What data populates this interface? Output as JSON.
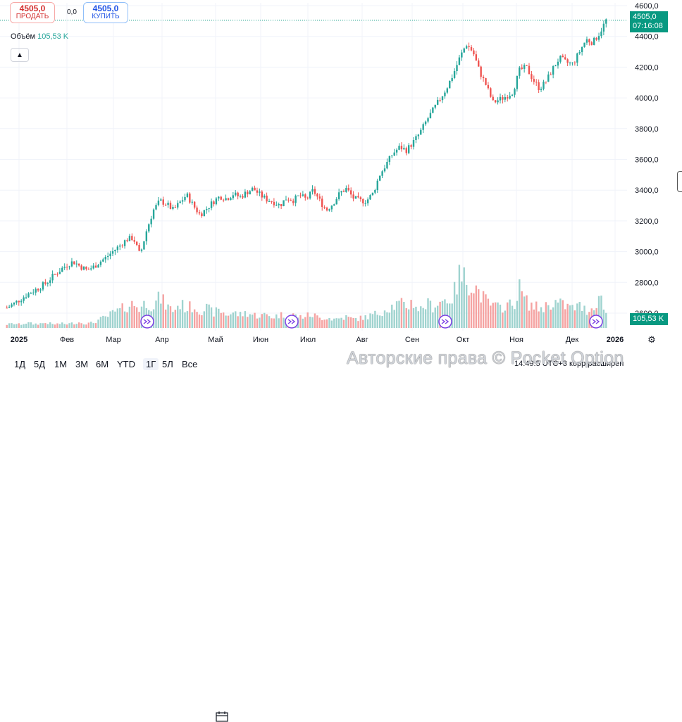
{
  "trade": {
    "sell_price": "4505,0",
    "sell_label": "ПРОДАТЬ",
    "buy_price": "4505,0",
    "buy_label": "КУПИТЬ",
    "spread": "0,0"
  },
  "volume_legend": {
    "label": "Объём",
    "value": "105,53 K"
  },
  "price_axis": {
    "last_price": "4505,0",
    "countdown": "07:16:08",
    "volume_label": "105,53 K"
  },
  "colors": {
    "up": "#26a69a",
    "down": "#ef5350",
    "vol_up": "#9fd3cf",
    "vol_down": "#f5a3a2",
    "label_bg": "#089981"
  },
  "timeframes": [
    "1Д",
    "5Д",
    "1М",
    "3М",
    "6М",
    "YTD",
    "1Г",
    "5Л",
    "Все"
  ],
  "active_timeframe": "1Г",
  "bottom": {
    "time_text": "14:49:5",
    "utc_text": "UTC+3",
    "adj_text": "корр",
    "session_text": "расширен"
  },
  "watermark": "Авторские права © Pocket Option",
  "chart_data": {
    "type": "candlestick",
    "ylim": [
      2500,
      4620
    ],
    "yticks": [
      2600,
      2800,
      3000,
      3200,
      3400,
      3600,
      3800,
      4000,
      4200,
      4400,
      4600
    ],
    "ytick_labels": [
      "2600,0",
      "2800,0",
      "3000,0",
      "3200,0",
      "3400,0",
      "3600,0",
      "3800,0",
      "4000,0",
      "4200,0",
      "4400,0",
      "4600,0"
    ],
    "x_labels": [
      "2025",
      "Фев",
      "Мар",
      "Апр",
      "Май",
      "Июн",
      "Июл",
      "Авг",
      "Сен",
      "Окт",
      "Ноя",
      "Дек",
      "2026"
    ],
    "close_series": [
      2635,
      2660,
      2690,
      2720,
      2745,
      2770,
      2800,
      2845,
      2880,
      2915,
      2935,
      2905,
      2880,
      2900,
      2935,
      2965,
      3005,
      3040,
      3080,
      3090,
      2975,
      3140,
      3270,
      3330,
      3310,
      3270,
      3320,
      3370,
      3300,
      3240,
      3280,
      3325,
      3360,
      3345,
      3375,
      3355,
      3385,
      3410,
      3370,
      3340,
      3325,
      3300,
      3350,
      3335,
      3365,
      3340,
      3400,
      3330,
      3270,
      3315,
      3380,
      3410,
      3350,
      3330,
      3330,
      3380,
      3500,
      3570,
      3640,
      3680,
      3660,
      3710,
      3770,
      3850,
      3920,
      3990,
      4060,
      4150,
      4260,
      4350,
      4300,
      4170,
      4080,
      3970,
      3990,
      4010,
      4040,
      4180,
      4200,
      4120,
      4060,
      4110,
      4190,
      4260,
      4230,
      4220,
      4300,
      4380,
      4360,
      4420,
      4505
    ],
    "volume_relative": [
      0.08,
      0.1,
      0.08,
      0.12,
      0.09,
      0.1,
      0.12,
      0.08,
      0.1,
      0.09,
      0.11,
      0.13,
      0.1,
      0.12,
      0.2,
      0.25,
      0.35,
      0.4,
      0.5,
      0.55,
      0.45,
      0.6,
      0.5,
      0.7,
      0.5,
      0.4,
      0.55,
      0.45,
      0.5,
      0.4,
      0.45,
      0.35,
      0.4,
      0.3,
      0.35,
      0.3,
      0.35,
      0.3,
      0.28,
      0.3,
      0.25,
      0.3,
      0.28,
      0.3,
      0.25,
      0.28,
      0.3,
      0.22,
      0.25,
      0.2,
      0.22,
      0.25,
      0.2,
      0.22,
      0.25,
      0.3,
      0.35,
      0.45,
      0.5,
      0.55,
      0.5,
      0.6,
      0.4,
      0.55,
      0.5,
      0.6,
      0.65,
      0.7,
      1.2,
      1.1,
      1.0,
      0.8,
      0.6,
      0.5,
      0.45,
      0.55,
      0.5,
      0.9,
      0.6,
      0.5,
      0.45,
      0.5,
      0.6,
      0.55,
      0.5,
      0.45,
      0.5,
      0.4,
      0.45,
      0.75,
      0.35
    ]
  }
}
